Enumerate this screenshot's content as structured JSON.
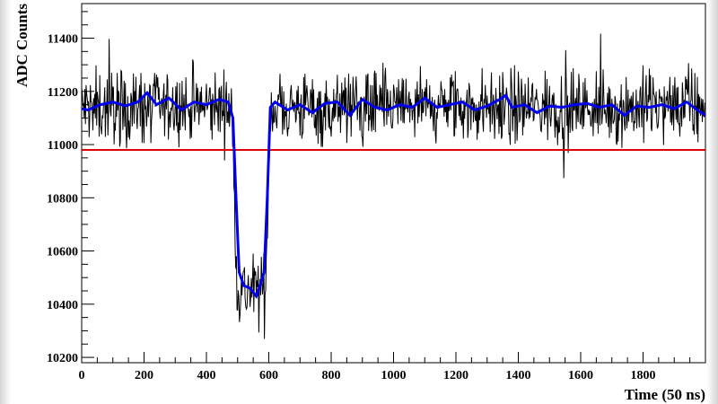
{
  "chart_data": {
    "type": "line",
    "title": "",
    "xlabel": "Time (50 ns)",
    "ylabel": "ADC Counts",
    "xlim": [
      0,
      2000
    ],
    "ylim": [
      10180,
      11530
    ],
    "x_ticks": [
      0,
      200,
      400,
      600,
      800,
      1000,
      1200,
      1400,
      1600,
      1800
    ],
    "y_ticks": [
      10200,
      10400,
      10600,
      10800,
      11000,
      11200,
      11400
    ],
    "grid": false,
    "legend": "none",
    "colors": {
      "raw": "#000000",
      "smoothed": "#0000ee",
      "threshold": "#dd0000"
    },
    "threshold": 10980,
    "series": [
      {
        "role": "raw",
        "baseline": 11140,
        "noise_amplitude": 70,
        "trough_level": 10450,
        "trough_start": 480,
        "trough_end": 600,
        "sample_step": 2
      },
      {
        "role": "smoothed",
        "x": [
          0,
          20,
          60,
          100,
          140,
          180,
          210,
          240,
          280,
          320,
          360,
          400,
          440,
          470,
          485,
          495,
          505,
          520,
          540,
          560,
          575,
          585,
          595,
          605,
          620,
          660,
          700,
          740,
          780,
          820,
          860,
          900,
          940,
          980,
          1020,
          1060,
          1100,
          1140,
          1180,
          1220,
          1260,
          1300,
          1340,
          1360,
          1380,
          1420,
          1460,
          1500,
          1540,
          1580,
          1620,
          1660,
          1700,
          1740,
          1780,
          1820,
          1860,
          1900,
          1940,
          1980,
          2000
        ],
        "values": [
          11135,
          11130,
          11150,
          11160,
          11145,
          11160,
          11195,
          11150,
          11175,
          11130,
          11160,
          11150,
          11170,
          11160,
          11100,
          10800,
          10520,
          10470,
          10460,
          10430,
          10480,
          10520,
          10800,
          11140,
          11160,
          11130,
          11150,
          11120,
          11155,
          11160,
          11110,
          11170,
          11140,
          11130,
          11150,
          11140,
          11175,
          11140,
          11150,
          11160,
          11130,
          11145,
          11170,
          11185,
          11140,
          11150,
          11120,
          11145,
          11140,
          11150,
          11155,
          11140,
          11150,
          11110,
          11145,
          11140,
          11150,
          11135,
          11160,
          11125,
          11110
        ]
      }
    ]
  }
}
